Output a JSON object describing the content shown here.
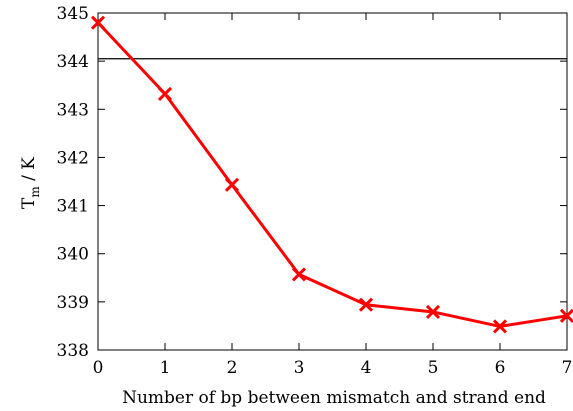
{
  "chart_data": {
    "type": "line",
    "xlabel": "Number of bp between mismatch and strand end",
    "ylabel_main": "T",
    "ylabel_sub": "m",
    "ylabel_rest": " / K",
    "xlim": [
      0,
      7
    ],
    "ylim": [
      338,
      345
    ],
    "xticks": [
      "0",
      "1",
      "2",
      "3",
      "4",
      "5",
      "6",
      "7"
    ],
    "yticks": [
      "338",
      "339",
      "340",
      "341",
      "342",
      "343",
      "344",
      "345"
    ],
    "grid": false,
    "reference_line": {
      "y": 344.05,
      "color": "#000000"
    },
    "series": [
      {
        "color": "#ff0000",
        "marker": "x",
        "x": [
          0,
          1,
          2,
          3,
          4,
          5,
          6,
          7
        ],
        "y": [
          344.8,
          343.32,
          341.43,
          339.57,
          338.94,
          338.79,
          338.49,
          338.71
        ]
      }
    ]
  }
}
